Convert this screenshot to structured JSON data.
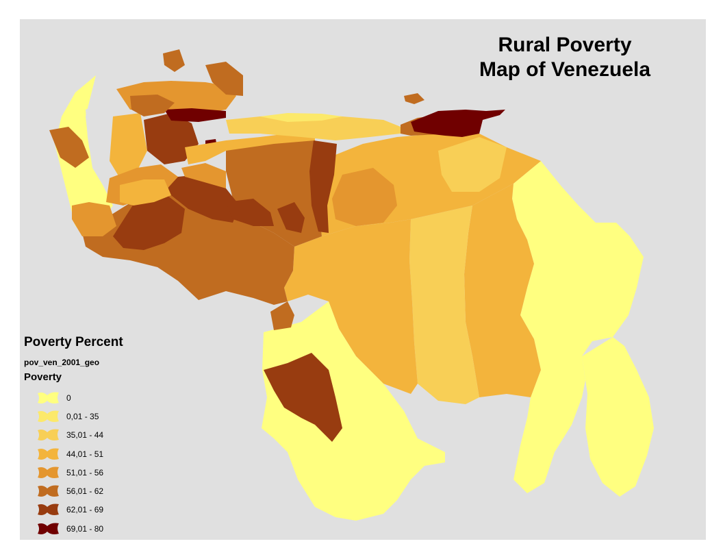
{
  "title": {
    "line1": "Rural Poverty",
    "line2": "Map of Venezuela"
  },
  "legend": {
    "title": "Poverty Percent",
    "layer": "pov_ven_2001_geo",
    "field": "Poverty",
    "classes": [
      {
        "label": "0",
        "color": "#ffff80"
      },
      {
        "label": "0,01 - 35",
        "color": "#fce96a"
      },
      {
        "label": "35,01 - 44",
        "color": "#f8cf56"
      },
      {
        "label": "44,01 - 51",
        "color": "#f3b43c"
      },
      {
        "label": "51,01 - 56",
        "color": "#e4962f"
      },
      {
        "label": "56,01 - 62",
        "color": "#c06c20"
      },
      {
        "label": "62,01 - 69",
        "color": "#983c10"
      },
      {
        "label": "69,01 - 80",
        "color": "#700000"
      }
    ]
  },
  "colors": {
    "frame_background": "#e0e0e0",
    "page_background": "#ffffff"
  }
}
